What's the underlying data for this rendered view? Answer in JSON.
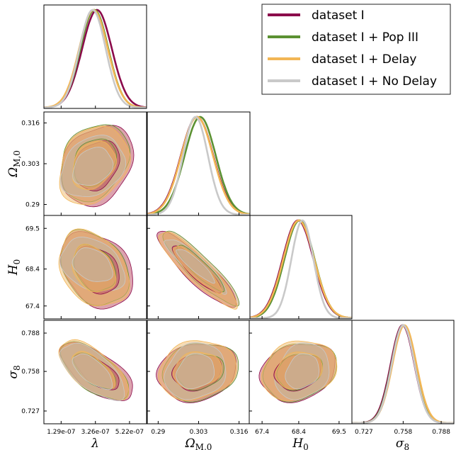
{
  "chart_data": {
    "type": "corner",
    "parameters": [
      {
        "label": "λ",
        "sub": "",
        "ticks": [
          "1.29e-07",
          "3.26e-07",
          "5.22e-07"
        ],
        "tick_values": [
          1.29e-07,
          3.26e-07,
          5.22e-07
        ],
        "range": [
          3e-08,
          6.2e-07
        ]
      },
      {
        "label": "Ω",
        "sub": "M,0",
        "ticks": [
          "0.29",
          "0.303",
          "0.316"
        ],
        "tick_values": [
          0.29,
          0.303,
          0.316
        ],
        "range": [
          0.2865,
          0.3195
        ]
      },
      {
        "label": "H",
        "sub": "0",
        "ticks": [
          "67.4",
          "68.4",
          "69.5"
        ],
        "tick_values": [
          67.4,
          68.4,
          69.5
        ],
        "range": [
          67.05,
          69.85
        ]
      },
      {
        "label": "σ",
        "sub": "8",
        "ticks": [
          "0.727",
          "0.758",
          "0.788"
        ],
        "tick_values": [
          0.727,
          0.758,
          0.788
        ],
        "range": [
          0.717,
          0.798
        ]
      }
    ],
    "series": [
      {
        "name": "dataset I",
        "color": "#8b0a4b",
        "fill": "#b9475e",
        "mean": [
          3.35e-07,
          0.3025,
          68.38,
          0.7575
        ],
        "sigma": [
          8.5e-08,
          0.0052,
          0.42,
          0.0093
        ]
      },
      {
        "name": "dataset I + Pop III",
        "color": "#5b9132",
        "fill": "#c88f5f",
        "mean": [
          3.2e-07,
          0.3035,
          68.42,
          0.758
        ],
        "sigma": [
          8e-08,
          0.005,
          0.41,
          0.0092
        ]
      },
      {
        "name": "dataset I + Delay",
        "color": "#f2b655",
        "fill": "#f0ba6b",
        "mean": [
          3.15e-07,
          0.3025,
          68.4,
          0.759
        ],
        "sigma": [
          8.2e-08,
          0.0051,
          0.42,
          0.0094
        ]
      },
      {
        "name": "dataset I + No Delay",
        "color": "#c9c9c9",
        "fill": "#bdb5a6",
        "mean": [
          3.1e-07,
          0.302,
          68.5,
          0.758
        ],
        "sigma": [
          7.5e-08,
          0.004,
          0.3,
          0.009
        ]
      }
    ],
    "correlations": {
      "1-0": 0.25,
      "2-0": -0.3,
      "2-1": -0.9,
      "3-0": -0.65,
      "3-1": 0.15,
      "3-2": 0.2
    },
    "legend_position": "top-right",
    "grid": false
  }
}
